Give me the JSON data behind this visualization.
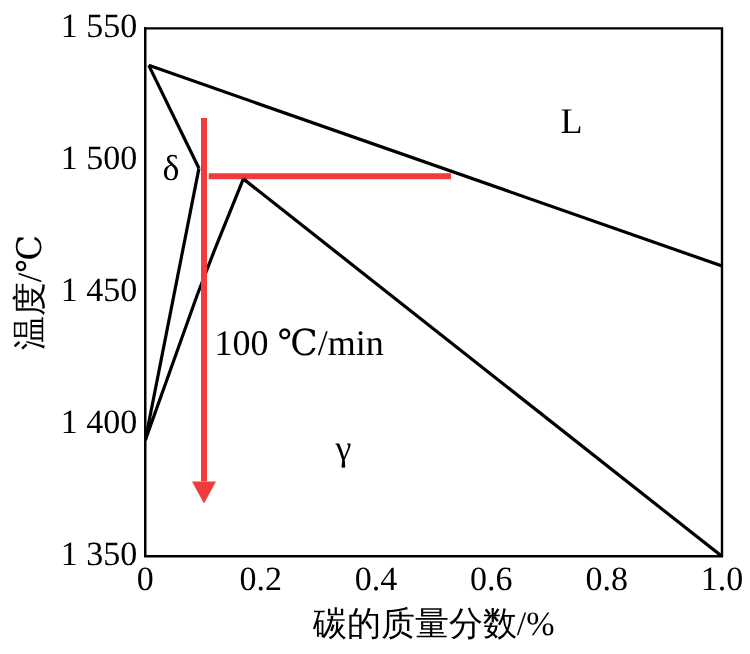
{
  "chart_data": {
    "type": "line",
    "xlabel": "碳的质量分数/%",
    "ylabel": "温度/℃",
    "xlim": [
      0,
      1
    ],
    "xticks": [
      {
        "value": 0,
        "label": "0"
      },
      0.2,
      0.4,
      0.6,
      0.8,
      {
        "value": 1,
        "label": "1.0"
      }
    ],
    "ylim": [
      1350,
      1550
    ],
    "yticks": [
      {
        "value": 1350,
        "label": "1 350"
      },
      {
        "value": 1400,
        "label": "1 400"
      },
      {
        "value": 1450,
        "label": "1 450"
      },
      {
        "value": 1500,
        "label": "1 500"
      },
      {
        "value": 1550,
        "label": "1 550"
      }
    ],
    "grid": false,
    "legend": false,
    "marker": "none",
    "line_style": "solid",
    "series": [
      {
        "color": "#000000",
        "x": [
          0.006,
          1.0
        ],
        "values": [
          1536,
          1460
        ]
      },
      {
        "color": "#000000",
        "x": [
          0.006,
          0.093
        ],
        "values": [
          1536,
          1497
        ]
      },
      {
        "color": "#000000",
        "x": [
          0.093,
          0
        ],
        "values": [
          1497,
          1394
        ]
      },
      {
        "color": "#000000",
        "x": [
          0,
          0.09,
          0.12,
          0.17
        ],
        "values": [
          1394,
          1449,
          1466,
          1493
        ]
      },
      {
        "color": "#000000",
        "x": [
          0.17,
          1.0
        ],
        "values": [
          1493,
          1350
        ]
      },
      {
        "color": "#f03c3c",
        "x": [
          0.11,
          0.53
        ],
        "values": [
          1494,
          1494
        ]
      }
    ],
    "annotations": [
      "L",
      "δ",
      "γ",
      "100 ℃/min"
    ]
  }
}
